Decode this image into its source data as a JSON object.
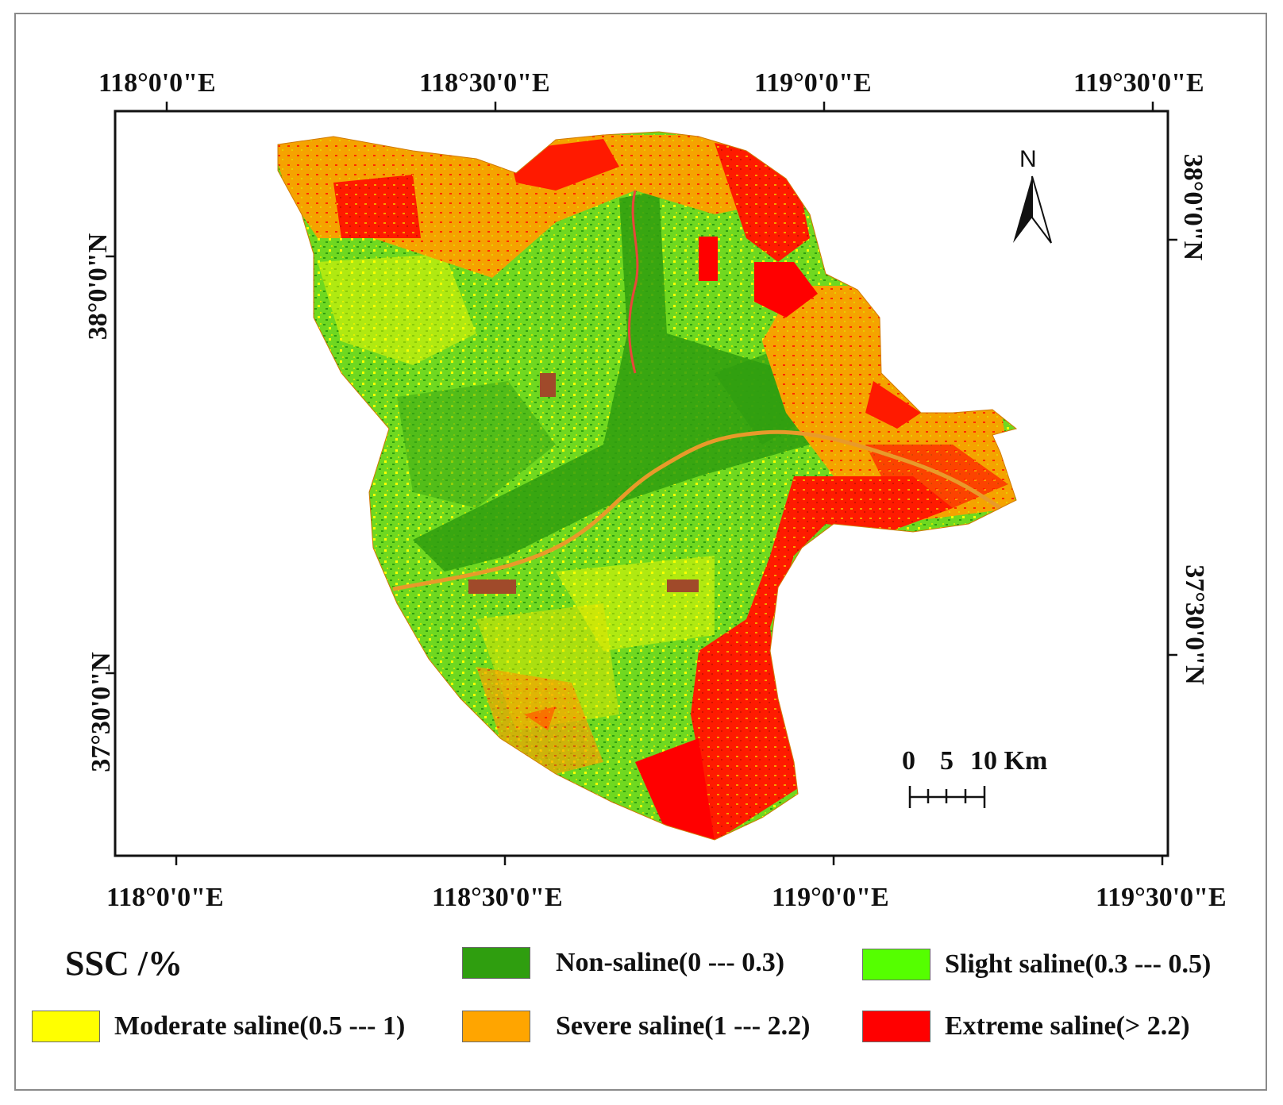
{
  "map": {
    "top_lon_labels": [
      "118°0'0\"E",
      "118°30'0\"E",
      "119°0'0\"E",
      "119°30'0\"E"
    ],
    "bottom_lon_labels": [
      "118°0'0\"E",
      "118°30'0\"E",
      "119°0'0\"E",
      "119°30'0\"E"
    ],
    "left_lat_labels": [
      "38°0'0\"N",
      "37°30'0\"N"
    ],
    "right_lat_labels": [
      "38°0'0\"N",
      "37°30'0\"N"
    ],
    "north_arrow": {
      "label": "N",
      "icon": "north-arrow-icon"
    },
    "scale_bar": {
      "labels": [
        "0",
        "5",
        "10 Km"
      ]
    }
  },
  "legend": {
    "title": "SSC /%",
    "items": [
      {
        "label": "Non-saline(0 --- 0.3)",
        "color": "#2f9e0f"
      },
      {
        "label": "Slight saline(0.3 --- 0.5)",
        "color": "#55ff00"
      },
      {
        "label": "Moderate saline(0.5 --- 1)",
        "color": "#ffff00"
      },
      {
        "label": "Severe saline(1 --- 2.2)",
        "color": "#ffa500"
      },
      {
        "label": "Extreme saline(> 2.2)",
        "color": "#ff0000"
      }
    ]
  }
}
